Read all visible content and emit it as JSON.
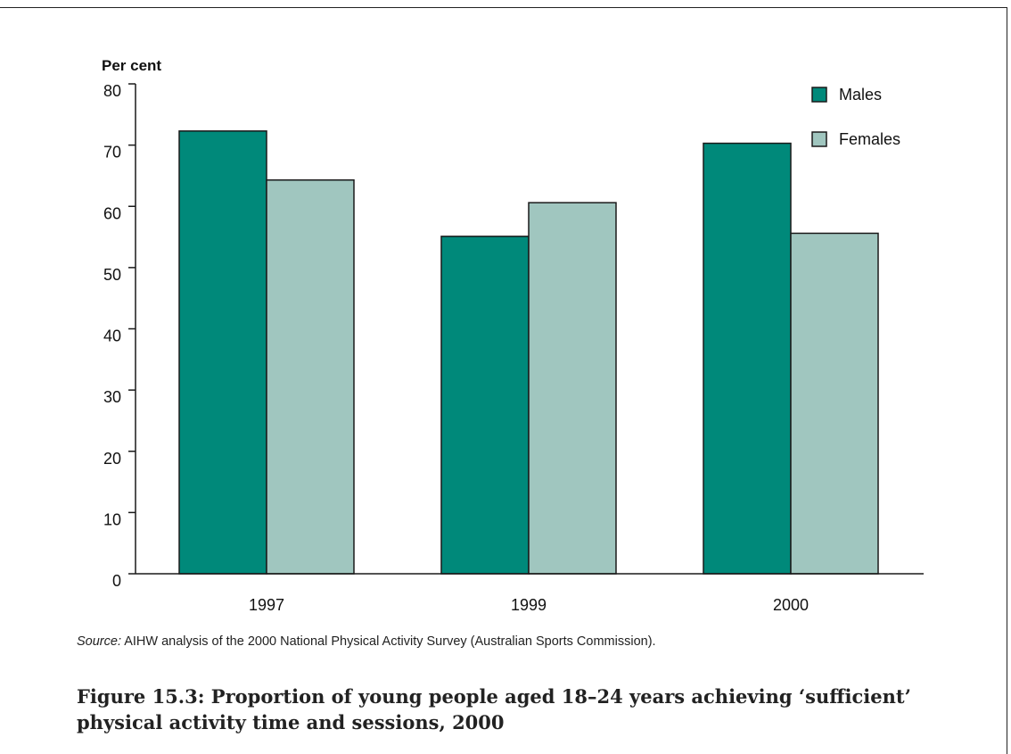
{
  "figure": {
    "source_label": "Source:",
    "source_text": " AIHW analysis of the 2000 National Physical Activity Survey (Australian Sports Commission).",
    "caption": "Figure 15.3: Proportion of young people aged 18–24 years achieving ‘sufficient’ physical activity time and sessions, 2000"
  },
  "chart_data": {
    "type": "bar",
    "ylabel": "Per cent",
    "xlabel": "",
    "categories": [
      "1997",
      "1999",
      "2000"
    ],
    "series": [
      {
        "name": "Males",
        "values": [
          72.3,
          55.1,
          70.3
        ],
        "color": "#00897a"
      },
      {
        "name": "Females",
        "values": [
          64.3,
          60.6,
          55.6
        ],
        "color": "#a0c6bf"
      }
    ],
    "ylim": [
      0,
      80
    ],
    "yticks": [
      0,
      10,
      20,
      30,
      40,
      50,
      60,
      70,
      80
    ],
    "grid": false,
    "legend_position": "top-right"
  }
}
